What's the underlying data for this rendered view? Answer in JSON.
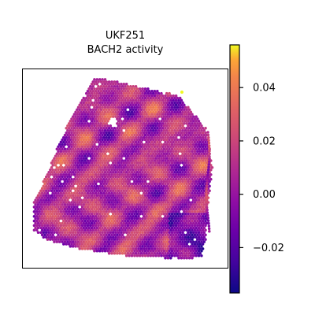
{
  "chart_data": {
    "type": "heatmap",
    "title_line1": "UKF251",
    "title_line2": "BACH2 activity",
    "colormap": "plasma",
    "colorbar": {
      "vmin": -0.037,
      "vmax": 0.056,
      "ticks": [
        -0.02,
        0.0,
        0.02,
        0.04
      ],
      "tick_labels": [
        "−0.02",
        "0.00",
        "0.02",
        "0.04"
      ]
    },
    "plot_tissue": "spatial spot map (hexagonal spots) of a tissue section, irregular quadrilateral outline",
    "colors": {
      "low": "#0d0887",
      "mid": "#cc4778",
      "high": "#f0f921"
    }
  }
}
